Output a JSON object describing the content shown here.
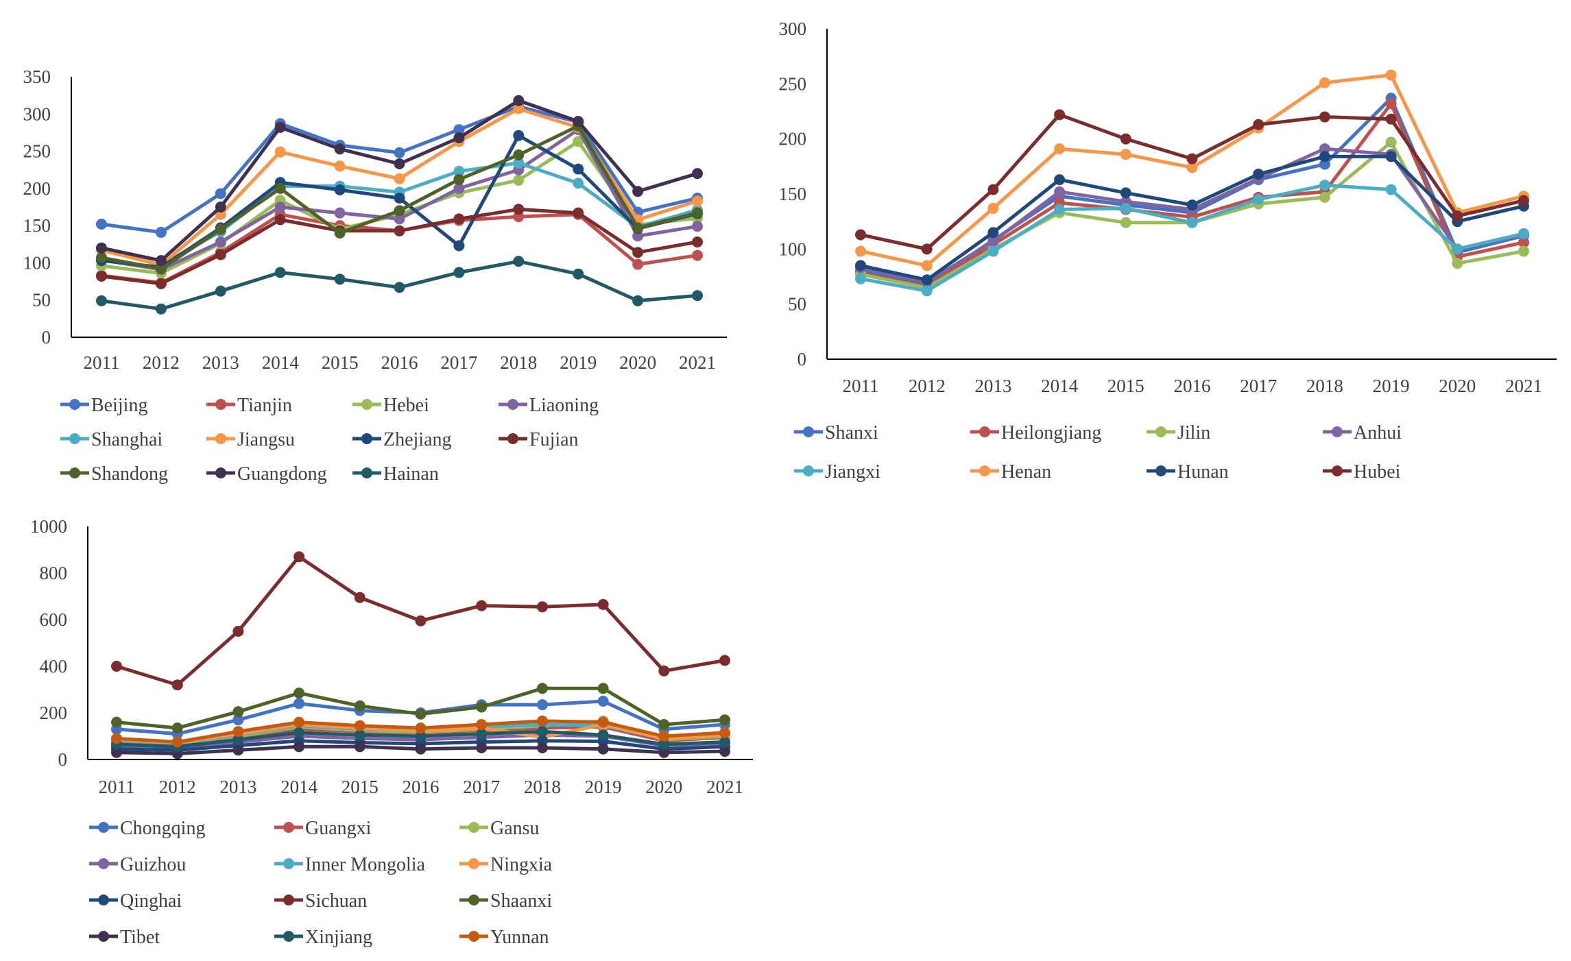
{
  "chart_data": [
    {
      "type": "line",
      "title": "",
      "xlabel": "",
      "ylabel": "",
      "categories": [
        "2011",
        "2012",
        "2013",
        "2014",
        "2015",
        "2016",
        "2017",
        "2018",
        "2019",
        "2020",
        "2021"
      ],
      "ylim": [
        0,
        350
      ],
      "yticks": [
        0,
        50,
        100,
        150,
        200,
        250,
        300,
        350
      ],
      "grid": false,
      "legend": "bottom",
      "series": [
        {
          "name": "Beijing",
          "color": "#4472C4",
          "values": [
            152,
            141,
            193,
            287,
            258,
            248,
            279,
            310,
            289,
            168,
            187
          ]
        },
        {
          "name": "Tianjin",
          "color": "#C0504D",
          "values": [
            83,
            73,
            114,
            165,
            150,
            143,
            157,
            162,
            165,
            98,
            110
          ]
        },
        {
          "name": "Hebei",
          "color": "#9BBB59",
          "values": [
            96,
            86,
            126,
            184,
            145,
            165,
            194,
            211,
            263,
            151,
            160
          ]
        },
        {
          "name": "Liaoning",
          "color": "#8064A2",
          "values": [
            104,
            91,
            128,
            175,
            167,
            159,
            200,
            225,
            279,
            136,
            149
          ]
        },
        {
          "name": "Shanghai",
          "color": "#4BACC6",
          "values": [
            118,
            97,
            142,
            203,
            203,
            195,
            223,
            234,
            207,
            148,
            171
          ]
        },
        {
          "name": "Jiangsu",
          "color": "#F79646",
          "values": [
            117,
            97,
            165,
            249,
            230,
            213,
            263,
            307,
            282,
            158,
            183
          ]
        },
        {
          "name": "Zhejiang",
          "color": "#1F497D",
          "values": [
            103,
            94,
            147,
            208,
            198,
            187,
            123,
            271,
            226,
            146,
            166
          ]
        },
        {
          "name": "Fujian",
          "color": "#7B2C2C",
          "values": [
            82,
            72,
            111,
            158,
            143,
            143,
            159,
            172,
            167,
            114,
            128
          ]
        },
        {
          "name": "Shandong",
          "color": "#4F6228",
          "values": [
            107,
            92,
            145,
            200,
            140,
            170,
            212,
            245,
            284,
            147,
            167
          ]
        },
        {
          "name": "Guangdong",
          "color": "#403151",
          "values": [
            120,
            103,
            175,
            282,
            253,
            233,
            268,
            318,
            290,
            196,
            220
          ]
        },
        {
          "name": "Hainan",
          "color": "#215967",
          "values": [
            49,
            38,
            62,
            87,
            78,
            67,
            87,
            102,
            85,
            49,
            56
          ]
        }
      ]
    },
    {
      "type": "line",
      "title": "",
      "xlabel": "",
      "ylabel": "",
      "categories": [
        "2011",
        "2012",
        "2013",
        "2014",
        "2015",
        "2016",
        "2017",
        "2018",
        "2019",
        "2020",
        "2021"
      ],
      "ylim": [
        0,
        300
      ],
      "yticks": [
        0,
        50,
        100,
        150,
        200,
        250,
        300
      ],
      "grid": false,
      "legend": "bottom",
      "series": [
        {
          "name": "Shanxi",
          "color": "#4472C4",
          "values": [
            80,
            68,
            108,
            148,
            140,
            133,
            163,
            177,
            237,
            97,
            112
          ]
        },
        {
          "name": "Heilongjiang",
          "color": "#C0504D",
          "values": [
            78,
            66,
            104,
            142,
            136,
            129,
            147,
            152,
            232,
            93,
            106
          ]
        },
        {
          "name": "Jilin",
          "color": "#9BBB59",
          "values": [
            77,
            65,
            100,
            133,
            124,
            124,
            141,
            147,
            197,
            87,
            98
          ]
        },
        {
          "name": "Anhui",
          "color": "#8064A2",
          "values": [
            83,
            70,
            107,
            152,
            143,
            136,
            164,
            191,
            186,
            100,
            113
          ]
        },
        {
          "name": "Jiangxi",
          "color": "#4BACC6",
          "values": [
            73,
            62,
            98,
            136,
            137,
            124,
            145,
            158,
            154,
            100,
            114
          ]
        },
        {
          "name": "Henan",
          "color": "#F79646",
          "values": [
            98,
            85,
            137,
            191,
            186,
            174,
            210,
            251,
            258,
            133,
            148
          ]
        },
        {
          "name": "Hunan",
          "color": "#1F497D",
          "values": [
            85,
            72,
            115,
            163,
            151,
            140,
            168,
            184,
            184,
            125,
            139
          ]
        },
        {
          "name": "Hubei",
          "color": "#7B2C2C",
          "values": [
            113,
            100,
            154,
            222,
            200,
            182,
            213,
            220,
            218,
            130,
            144
          ]
        }
      ]
    },
    {
      "type": "line",
      "title": "",
      "xlabel": "",
      "ylabel": "",
      "categories": [
        "2011",
        "2012",
        "2013",
        "2014",
        "2015",
        "2016",
        "2017",
        "2018",
        "2019",
        "2020",
        "2021"
      ],
      "ylim": [
        0,
        1000
      ],
      "yticks": [
        0,
        200,
        400,
        600,
        800,
        1000
      ],
      "grid": false,
      "legend": "bottom",
      "series": [
        {
          "name": "Chongqing",
          "color": "#4472C4",
          "values": [
            130,
            110,
            170,
            240,
            210,
            200,
            235,
            235,
            250,
            130,
            150
          ]
        },
        {
          "name": "Guangxi",
          "color": "#C0504D",
          "values": [
            70,
            60,
            95,
            130,
            120,
            115,
            125,
            135,
            140,
            80,
            95
          ]
        },
        {
          "name": "Gansu",
          "color": "#9BBB59",
          "values": [
            75,
            65,
            100,
            140,
            125,
            118,
            130,
            145,
            165,
            85,
            100
          ]
        },
        {
          "name": "Guizhou",
          "color": "#8064A2",
          "values": [
            55,
            48,
            75,
            100,
            90,
            85,
            95,
            105,
            100,
            60,
            70
          ]
        },
        {
          "name": "Inner Mongolia",
          "color": "#4BACC6",
          "values": [
            80,
            68,
            105,
            145,
            130,
            125,
            140,
            150,
            145,
            90,
            105
          ]
        },
        {
          "name": "Ningxia",
          "color": "#F79646",
          "values": [
            85,
            72,
            110,
            150,
            135,
            125,
            135,
            95,
            150,
            90,
            105
          ]
        },
        {
          "name": "Qinghai",
          "color": "#1F497D",
          "values": [
            45,
            40,
            60,
            80,
            72,
            68,
            75,
            80,
            78,
            45,
            55
          ]
        },
        {
          "name": "Sichuan",
          "color": "#7B2C2C",
          "values": [
            400,
            320,
            550,
            870,
            695,
            595,
            660,
            655,
            665,
            380,
            425
          ]
        },
        {
          "name": "Shaanxi",
          "color": "#4F6228",
          "values": [
            160,
            135,
            205,
            285,
            230,
            195,
            225,
            305,
            305,
            150,
            170
          ]
        },
        {
          "name": "Tibet",
          "color": "#403151",
          "values": [
            30,
            25,
            40,
            55,
            55,
            45,
            50,
            50,
            45,
            30,
            35
          ]
        },
        {
          "name": "Xinjiang",
          "color": "#215967",
          "values": [
            65,
            55,
            85,
            115,
            105,
            100,
            110,
            120,
            105,
            65,
            75
          ]
        },
        {
          "name": "Yunnan",
          "color": "#C55A11",
          "values": [
            90,
            75,
            120,
            160,
            145,
            135,
            150,
            165,
            160,
            100,
            115
          ]
        }
      ]
    }
  ]
}
